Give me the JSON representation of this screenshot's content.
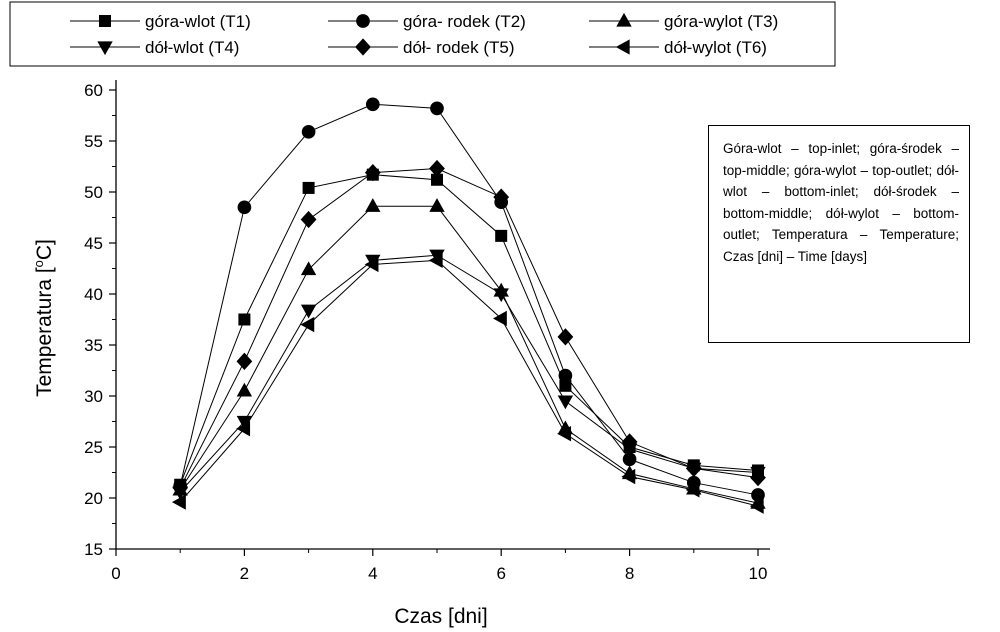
{
  "chart_data": {
    "type": "line",
    "xlabel": "Czas [dni]",
    "ylabel_parts": [
      "Temperatura [",
      "o",
      "C]"
    ],
    "xlim": [
      0,
      10
    ],
    "ylim": [
      15,
      60
    ],
    "xticks": [
      0,
      2,
      4,
      6,
      8,
      10
    ],
    "yticks": [
      15,
      20,
      25,
      30,
      35,
      40,
      45,
      50,
      55,
      60
    ],
    "grid": false,
    "legend_position": "top",
    "series": [
      {
        "name": "góra-wlot (T1)",
        "marker": "square",
        "x": [
          1,
          2,
          3,
          4,
          5,
          6,
          7,
          8,
          9,
          10
        ],
        "y": [
          21.3,
          37.5,
          50.4,
          51.7,
          51.2,
          45.7,
          31.0,
          25.0,
          23.2,
          22.7
        ]
      },
      {
        "name": "góra- rodek (T2)",
        "marker": "circle",
        "x": [
          1,
          2,
          3,
          4,
          5,
          6,
          7,
          8,
          9,
          10
        ],
        "y": [
          21.2,
          48.5,
          55.9,
          58.6,
          58.2,
          49.0,
          32.0,
          23.8,
          21.5,
          20.3
        ]
      },
      {
        "name": "góra-wylot (T3)",
        "marker": "triangle-up",
        "x": [
          1,
          2,
          3,
          4,
          5,
          6,
          7,
          8,
          9,
          10
        ],
        "y": [
          20.8,
          30.5,
          42.4,
          48.6,
          48.6,
          40.3,
          26.8,
          22.4,
          20.9,
          19.5
        ]
      },
      {
        "name": "dół-wlot (T4)",
        "marker": "triangle-down",
        "x": [
          1,
          2,
          3,
          4,
          5,
          6,
          7,
          8,
          9,
          10
        ],
        "y": [
          20.6,
          27.5,
          38.4,
          43.3,
          43.8,
          40.0,
          29.5,
          24.8,
          22.9,
          22.5
        ]
      },
      {
        "name": "dół- rodek (T5)",
        "marker": "diamond",
        "x": [
          1,
          2,
          3,
          4,
          5,
          6,
          7,
          8,
          9,
          10
        ],
        "y": [
          21.0,
          33.4,
          47.3,
          51.9,
          52.3,
          49.5,
          35.8,
          25.5,
          22.9,
          22.0
        ]
      },
      {
        "name": "dół-wylot (T6)",
        "marker": "triangle-left",
        "x": [
          1,
          2,
          3,
          4,
          5,
          6,
          7,
          8,
          9,
          10
        ],
        "y": [
          19.6,
          26.8,
          37.0,
          42.9,
          43.3,
          37.6,
          26.3,
          22.1,
          20.8,
          19.2
        ]
      }
    ]
  },
  "note": "Góra-wlot – top-inlet; góra-środek – top-middle; góra-wylot – top-outlet; dół-wlot – bottom-inlet; dół-środek – bottom-middle; dół-wylot – bottom-outlet; Temperatura – Temperature; Czas [dni] – Time [days]"
}
